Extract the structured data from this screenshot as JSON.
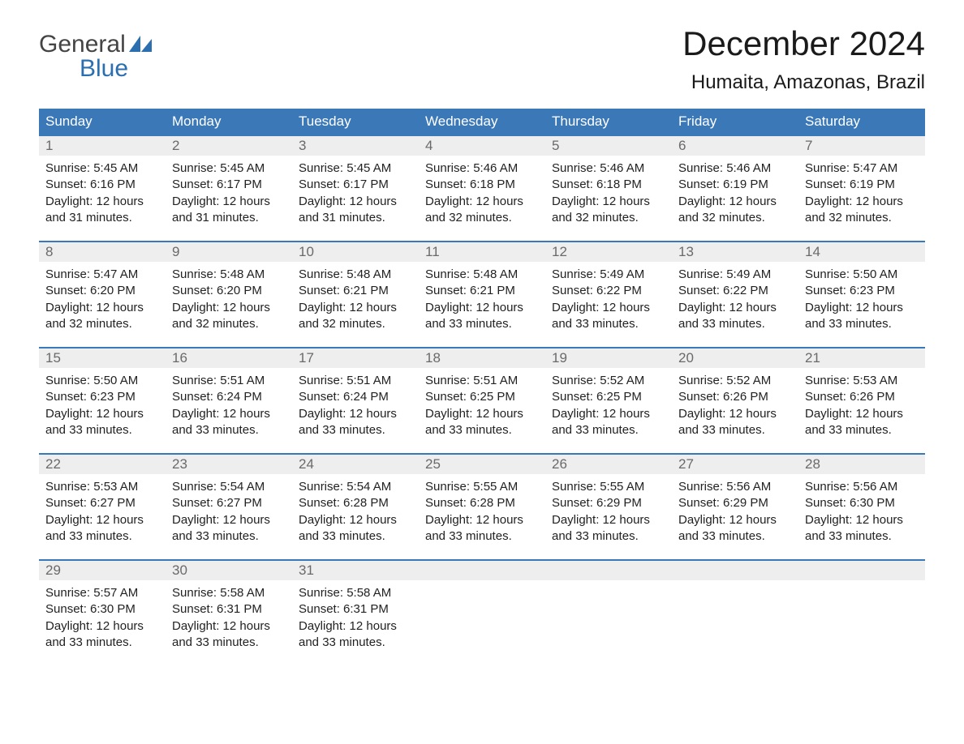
{
  "logo": {
    "line1": "General",
    "line2": "Blue"
  },
  "title": "December 2024",
  "subtitle": "Humaita, Amazonas, Brazil",
  "colors": {
    "header_bg": "#3b78b8",
    "header_text": "#ffffff",
    "daynum_bg": "#eeeeee",
    "daynum_text": "#6a6a6a",
    "text": "#222222",
    "logo_blue": "#2b6fb0"
  },
  "weekday_labels": [
    "Sunday",
    "Monday",
    "Tuesday",
    "Wednesday",
    "Thursday",
    "Friday",
    "Saturday"
  ],
  "weeks": [
    [
      {
        "num": "1",
        "sunrise": "5:45 AM",
        "sunset": "6:16 PM",
        "daylight": "12 hours and 31 minutes."
      },
      {
        "num": "2",
        "sunrise": "5:45 AM",
        "sunset": "6:17 PM",
        "daylight": "12 hours and 31 minutes."
      },
      {
        "num": "3",
        "sunrise": "5:45 AM",
        "sunset": "6:17 PM",
        "daylight": "12 hours and 31 minutes."
      },
      {
        "num": "4",
        "sunrise": "5:46 AM",
        "sunset": "6:18 PM",
        "daylight": "12 hours and 32 minutes."
      },
      {
        "num": "5",
        "sunrise": "5:46 AM",
        "sunset": "6:18 PM",
        "daylight": "12 hours and 32 minutes."
      },
      {
        "num": "6",
        "sunrise": "5:46 AM",
        "sunset": "6:19 PM",
        "daylight": "12 hours and 32 minutes."
      },
      {
        "num": "7",
        "sunrise": "5:47 AM",
        "sunset": "6:19 PM",
        "daylight": "12 hours and 32 minutes."
      }
    ],
    [
      {
        "num": "8",
        "sunrise": "5:47 AM",
        "sunset": "6:20 PM",
        "daylight": "12 hours and 32 minutes."
      },
      {
        "num": "9",
        "sunrise": "5:48 AM",
        "sunset": "6:20 PM",
        "daylight": "12 hours and 32 minutes."
      },
      {
        "num": "10",
        "sunrise": "5:48 AM",
        "sunset": "6:21 PM",
        "daylight": "12 hours and 32 minutes."
      },
      {
        "num": "11",
        "sunrise": "5:48 AM",
        "sunset": "6:21 PM",
        "daylight": "12 hours and 33 minutes."
      },
      {
        "num": "12",
        "sunrise": "5:49 AM",
        "sunset": "6:22 PM",
        "daylight": "12 hours and 33 minutes."
      },
      {
        "num": "13",
        "sunrise": "5:49 AM",
        "sunset": "6:22 PM",
        "daylight": "12 hours and 33 minutes."
      },
      {
        "num": "14",
        "sunrise": "5:50 AM",
        "sunset": "6:23 PM",
        "daylight": "12 hours and 33 minutes."
      }
    ],
    [
      {
        "num": "15",
        "sunrise": "5:50 AM",
        "sunset": "6:23 PM",
        "daylight": "12 hours and 33 minutes."
      },
      {
        "num": "16",
        "sunrise": "5:51 AM",
        "sunset": "6:24 PM",
        "daylight": "12 hours and 33 minutes."
      },
      {
        "num": "17",
        "sunrise": "5:51 AM",
        "sunset": "6:24 PM",
        "daylight": "12 hours and 33 minutes."
      },
      {
        "num": "18",
        "sunrise": "5:51 AM",
        "sunset": "6:25 PM",
        "daylight": "12 hours and 33 minutes."
      },
      {
        "num": "19",
        "sunrise": "5:52 AM",
        "sunset": "6:25 PM",
        "daylight": "12 hours and 33 minutes."
      },
      {
        "num": "20",
        "sunrise": "5:52 AM",
        "sunset": "6:26 PM",
        "daylight": "12 hours and 33 minutes."
      },
      {
        "num": "21",
        "sunrise": "5:53 AM",
        "sunset": "6:26 PM",
        "daylight": "12 hours and 33 minutes."
      }
    ],
    [
      {
        "num": "22",
        "sunrise": "5:53 AM",
        "sunset": "6:27 PM",
        "daylight": "12 hours and 33 minutes."
      },
      {
        "num": "23",
        "sunrise": "5:54 AM",
        "sunset": "6:27 PM",
        "daylight": "12 hours and 33 minutes."
      },
      {
        "num": "24",
        "sunrise": "5:54 AM",
        "sunset": "6:28 PM",
        "daylight": "12 hours and 33 minutes."
      },
      {
        "num": "25",
        "sunrise": "5:55 AM",
        "sunset": "6:28 PM",
        "daylight": "12 hours and 33 minutes."
      },
      {
        "num": "26",
        "sunrise": "5:55 AM",
        "sunset": "6:29 PM",
        "daylight": "12 hours and 33 minutes."
      },
      {
        "num": "27",
        "sunrise": "5:56 AM",
        "sunset": "6:29 PM",
        "daylight": "12 hours and 33 minutes."
      },
      {
        "num": "28",
        "sunrise": "5:56 AM",
        "sunset": "6:30 PM",
        "daylight": "12 hours and 33 minutes."
      }
    ],
    [
      {
        "num": "29",
        "sunrise": "5:57 AM",
        "sunset": "6:30 PM",
        "daylight": "12 hours and 33 minutes."
      },
      {
        "num": "30",
        "sunrise": "5:58 AM",
        "sunset": "6:31 PM",
        "daylight": "12 hours and 33 minutes."
      },
      {
        "num": "31",
        "sunrise": "5:58 AM",
        "sunset": "6:31 PM",
        "daylight": "12 hours and 33 minutes."
      },
      null,
      null,
      null,
      null
    ]
  ],
  "labels": {
    "sunrise": "Sunrise: ",
    "sunset": "Sunset: ",
    "daylight": "Daylight: "
  }
}
